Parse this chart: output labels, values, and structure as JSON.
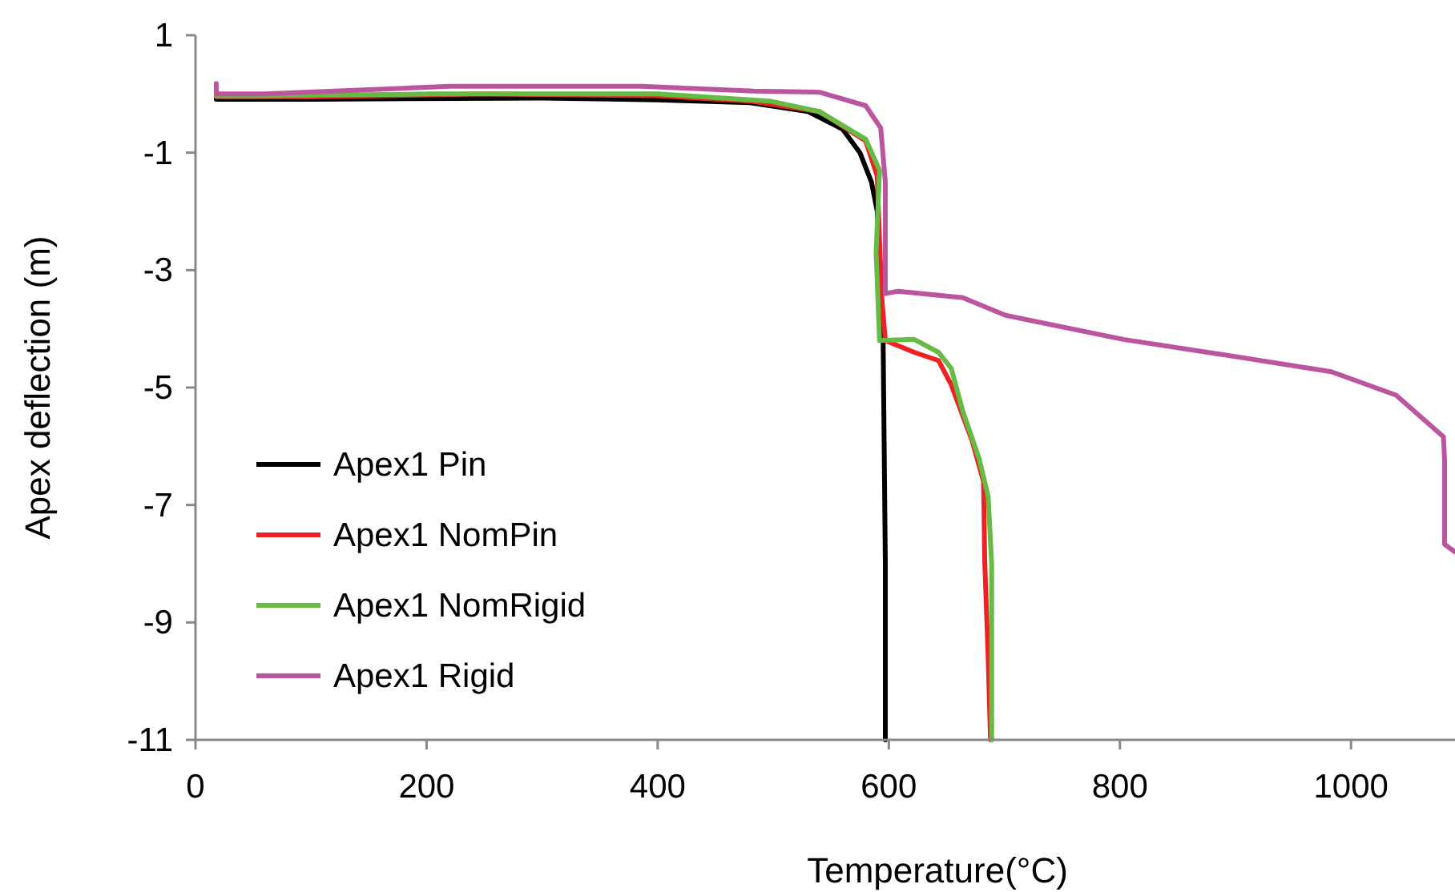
{
  "chart_data": {
    "type": "line",
    "xlabel": "Temperature(°C)",
    "ylabel": "Apex deflection (m)",
    "xlim": [
      0,
      1090
    ],
    "xticks": [
      0,
      200,
      400,
      600,
      800,
      1000
    ],
    "ylim": [
      -11,
      1
    ],
    "yticks": [
      1,
      -1,
      -3,
      -5,
      -7,
      -9,
      -11
    ],
    "grid": false,
    "legend": "bottom left",
    "marker": "none",
    "line_style": "solid",
    "series": [
      {
        "name": "Apex1 Pin",
        "color": "#000000",
        "x": [
          18,
          100,
          300,
          400,
          480,
          530,
          560,
          575,
          585,
          590,
          595,
          597,
          597
        ],
        "values": [
          -0.09,
          -0.09,
          -0.07,
          -0.1,
          -0.15,
          -0.3,
          -0.6,
          -1.0,
          -1.5,
          -2.0,
          -4.0,
          -8.0,
          -11
        ]
      },
      {
        "name": "Apex1 NomPin",
        "color": "#ee2222",
        "x": [
          18,
          100,
          250,
          400,
          480,
          540,
          580,
          590,
          592,
          594,
          597,
          622,
          643,
          654,
          672,
          682,
          683,
          686,
          688
        ],
        "values": [
          -0.05,
          -0.05,
          0.0,
          -0.03,
          -0.12,
          -0.3,
          -0.8,
          -1.4,
          -2.5,
          -3.5,
          -4.2,
          -4.4,
          -4.54,
          -4.95,
          -5.9,
          -6.6,
          -7.95,
          -9.6,
          -11
        ]
      },
      {
        "name": "Apex1 NomRigid",
        "color": "#66bb44",
        "x": [
          18,
          50,
          205,
          400,
          497,
          540,
          580,
          592,
          589,
          592,
          622,
          643,
          654,
          664,
          678,
          686,
          689,
          689
        ],
        "values": [
          -0.03,
          -0.03,
          0.0,
          0.0,
          -0.12,
          -0.3,
          -0.77,
          -1.3,
          -2.7,
          -4.2,
          -4.18,
          -4.4,
          -4.67,
          -5.4,
          -6.2,
          -6.85,
          -8.0,
          -11
        ]
      },
      {
        "name": "Apex1 Rigid",
        "color": "#bb55a0",
        "x": [
          18,
          18,
          60,
          220,
          386,
          483,
          540,
          580,
          593,
          597,
          597,
          608,
          664,
          701,
          803,
          886,
          983,
          1039,
          1080,
          1081,
          1081,
          1090
        ],
        "values": [
          0.18,
          0.0,
          0.0,
          0.13,
          0.13,
          0.05,
          0.03,
          -0.2,
          -0.58,
          -1.5,
          -3.4,
          -3.36,
          -3.47,
          -3.77,
          -4.18,
          -4.43,
          -4.73,
          -5.13,
          -5.84,
          -6.25,
          -7.67,
          -7.8
        ]
      }
    ]
  }
}
